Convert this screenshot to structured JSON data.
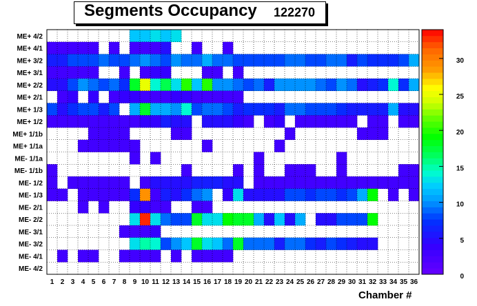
{
  "chart_data": {
    "type": "heatmap",
    "title": "Segments Occupancy",
    "run_number": "122270",
    "xlabel": "Chamber #",
    "ylabel": "",
    "x_categories": [
      "1",
      "2",
      "3",
      "4",
      "5",
      "6",
      "7",
      "8",
      "9",
      "10",
      "11",
      "12",
      "13",
      "14",
      "15",
      "16",
      "17",
      "18",
      "19",
      "20",
      "21",
      "22",
      "23",
      "24",
      "25",
      "26",
      "27",
      "28",
      "29",
      "30",
      "31",
      "32",
      "33",
      "34",
      "35",
      "36"
    ],
    "y_categories": [
      "ME+ 4/2",
      "ME+ 4/1",
      "ME+ 3/2",
      "ME+ 3/1",
      "ME+ 2/2",
      "ME+ 2/1",
      "ME+ 1/3",
      "ME+ 1/2",
      "ME+ 1/1b",
      "ME+ 1/1a",
      "ME- 1/1a",
      "ME- 1/1b",
      "ME- 1/2",
      "ME- 1/3",
      "ME- 2/1",
      "ME- 2/2",
      "ME- 3/1",
      "ME- 3/2",
      "ME- 4/1",
      "ME- 4/2"
    ],
    "zlim": [
      0,
      34
    ],
    "z_ticks": [
      "0",
      "5",
      "10",
      "15",
      "20",
      "25",
      "30"
    ],
    "values": [
      [
        0,
        0,
        0,
        0,
        0,
        0,
        0,
        0,
        12,
        12,
        13,
        12,
        13,
        0,
        0,
        0,
        0,
        0,
        0,
        0,
        0,
        0,
        0,
        0,
        0,
        0,
        0,
        0,
        0,
        0,
        0,
        0,
        0,
        0,
        0,
        0
      ],
      [
        3,
        3,
        3,
        3,
        3,
        0,
        3,
        0,
        3,
        3,
        3,
        5,
        0,
        0,
        3,
        0,
        0,
        3,
        0,
        0,
        0,
        0,
        0,
        0,
        0,
        0,
        0,
        0,
        0,
        0,
        0,
        0,
        0,
        0,
        0,
        0
      ],
      [
        6,
        6,
        8,
        8,
        8,
        9,
        8,
        8,
        9,
        10,
        9,
        8,
        10,
        9,
        9,
        11,
        9,
        9,
        8,
        8,
        8,
        8,
        8,
        9,
        9,
        8,
        8,
        9,
        9,
        6,
        8,
        7,
        7,
        7,
        8,
        11
      ],
      [
        3,
        3,
        3,
        3,
        3,
        0,
        0,
        3,
        0,
        3,
        4,
        4,
        0,
        0,
        0,
        3,
        3,
        0,
        3,
        0,
        0,
        0,
        0,
        0,
        0,
        0,
        0,
        0,
        0,
        0,
        0,
        0,
        0,
        0,
        0,
        0
      ],
      [
        5,
        5,
        8,
        10,
        9,
        8,
        9,
        7,
        18,
        25,
        14,
        17,
        13,
        20,
        12,
        20,
        10,
        10,
        9,
        8,
        9,
        6,
        10,
        10,
        10,
        10,
        9,
        8,
        10,
        9,
        5,
        6,
        7,
        14,
        7,
        11
      ],
      [
        0,
        3,
        4,
        0,
        4,
        0,
        3,
        4,
        4,
        3,
        3,
        3,
        4,
        4,
        3,
        3,
        3,
        3,
        3,
        0,
        0,
        0,
        0,
        0,
        0,
        0,
        0,
        0,
        0,
        0,
        0,
        0,
        0,
        0,
        0,
        0
      ],
      [
        8,
        5,
        7,
        8,
        8,
        6,
        8,
        0,
        11,
        18,
        11,
        11,
        10,
        14,
        8,
        9,
        9,
        8,
        6,
        7,
        7,
        7,
        6,
        9,
        9,
        8,
        8,
        8,
        7,
        6,
        6,
        6,
        6,
        11,
        5,
        5
      ],
      [
        3,
        3,
        3,
        3,
        3,
        3,
        3,
        3,
        3,
        4,
        4,
        6,
        5,
        5,
        0,
        5,
        5,
        5,
        4,
        3,
        0,
        3,
        4,
        0,
        3,
        3,
        3,
        3,
        3,
        3,
        0,
        3,
        3,
        0,
        3,
        3
      ],
      [
        0,
        0,
        0,
        0,
        3,
        3,
        3,
        3,
        0,
        0,
        0,
        0,
        3,
        3,
        0,
        0,
        0,
        0,
        0,
        0,
        0,
        0,
        0,
        3,
        0,
        0,
        0,
        0,
        0,
        0,
        3,
        3,
        3,
        0,
        0,
        0
      ],
      [
        0,
        0,
        0,
        3,
        3,
        3,
        3,
        3,
        3,
        0,
        0,
        0,
        0,
        0,
        0,
        3,
        0,
        0,
        0,
        0,
        0,
        0,
        3,
        0,
        0,
        0,
        0,
        0,
        0,
        0,
        0,
        0,
        0,
        0,
        0,
        0
      ],
      [
        0,
        0,
        0,
        0,
        0,
        0,
        0,
        0,
        3,
        0,
        3,
        0,
        0,
        0,
        0,
        0,
        0,
        0,
        0,
        0,
        3,
        0,
        0,
        0,
        0,
        0,
        0,
        0,
        3,
        0,
        0,
        0,
        0,
        0,
        0,
        0
      ],
      [
        3,
        0,
        0,
        0,
        0,
        0,
        0,
        0,
        0,
        0,
        0,
        0,
        0,
        3,
        0,
        0,
        0,
        0,
        3,
        0,
        3,
        0,
        0,
        3,
        3,
        3,
        0,
        0,
        3,
        0,
        0,
        0,
        0,
        0,
        3,
        3
      ],
      [
        3,
        0,
        3,
        3,
        3,
        3,
        3,
        3,
        0,
        3,
        5,
        5,
        5,
        5,
        6,
        6,
        6,
        5,
        5,
        0,
        3,
        3,
        3,
        3,
        3,
        3,
        3,
        3,
        3,
        3,
        3,
        3,
        3,
        3,
        3,
        3
      ],
      [
        3,
        3,
        0,
        3,
        3,
        3,
        3,
        3,
        7,
        29,
        3,
        6,
        5,
        7,
        9,
        10,
        0,
        4,
        13,
        5,
        5,
        5,
        5,
        8,
        8,
        7,
        8,
        8,
        7,
        8,
        11,
        19,
        0,
        3,
        0,
        3
      ],
      [
        0,
        0,
        0,
        3,
        0,
        3,
        0,
        0,
        4,
        4,
        3,
        3,
        0,
        0,
        3,
        3,
        0,
        0,
        0,
        0,
        0,
        0,
        0,
        0,
        0,
        0,
        0,
        0,
        0,
        0,
        0,
        0,
        0,
        0,
        0,
        0
      ],
      [
        0,
        0,
        0,
        0,
        0,
        0,
        0,
        0,
        13,
        33,
        13,
        9,
        8,
        8,
        18,
        13,
        13,
        19,
        18,
        18,
        11,
        5,
        12,
        5,
        11,
        0,
        5,
        5,
        8,
        8,
        8,
        19,
        0,
        0,
        0,
        0
      ],
      [
        0,
        0,
        0,
        0,
        0,
        0,
        0,
        3,
        3,
        3,
        4,
        0,
        0,
        0,
        0,
        0,
        0,
        0,
        0,
        0,
        0,
        0,
        0,
        0,
        0,
        0,
        0,
        0,
        0,
        0,
        0,
        0,
        0,
        0,
        0,
        0
      ],
      [
        0,
        0,
        0,
        0,
        0,
        0,
        0,
        0,
        13,
        15,
        14,
        8,
        10,
        12,
        18,
        13,
        12,
        9,
        18,
        9,
        9,
        9,
        6,
        9,
        9,
        7,
        6,
        8,
        7,
        6,
        5,
        5,
        0,
        0,
        0,
        0
      ],
      [
        0,
        3,
        0,
        3,
        3,
        0,
        0,
        3,
        3,
        3,
        3,
        0,
        3,
        0,
        3,
        3,
        3,
        3,
        0,
        0,
        0,
        0,
        0,
        0,
        0,
        0,
        0,
        0,
        0,
        0,
        0,
        0,
        0,
        0,
        0,
        0
      ],
      [
        0,
        0,
        0,
        0,
        0,
        0,
        0,
        0,
        0,
        0,
        0,
        0,
        0,
        0,
        0,
        0,
        0,
        0,
        0,
        0,
        0,
        0,
        0,
        0,
        0,
        0,
        0,
        0,
        0,
        0,
        0,
        0,
        0,
        0,
        0,
        0
      ]
    ]
  }
}
